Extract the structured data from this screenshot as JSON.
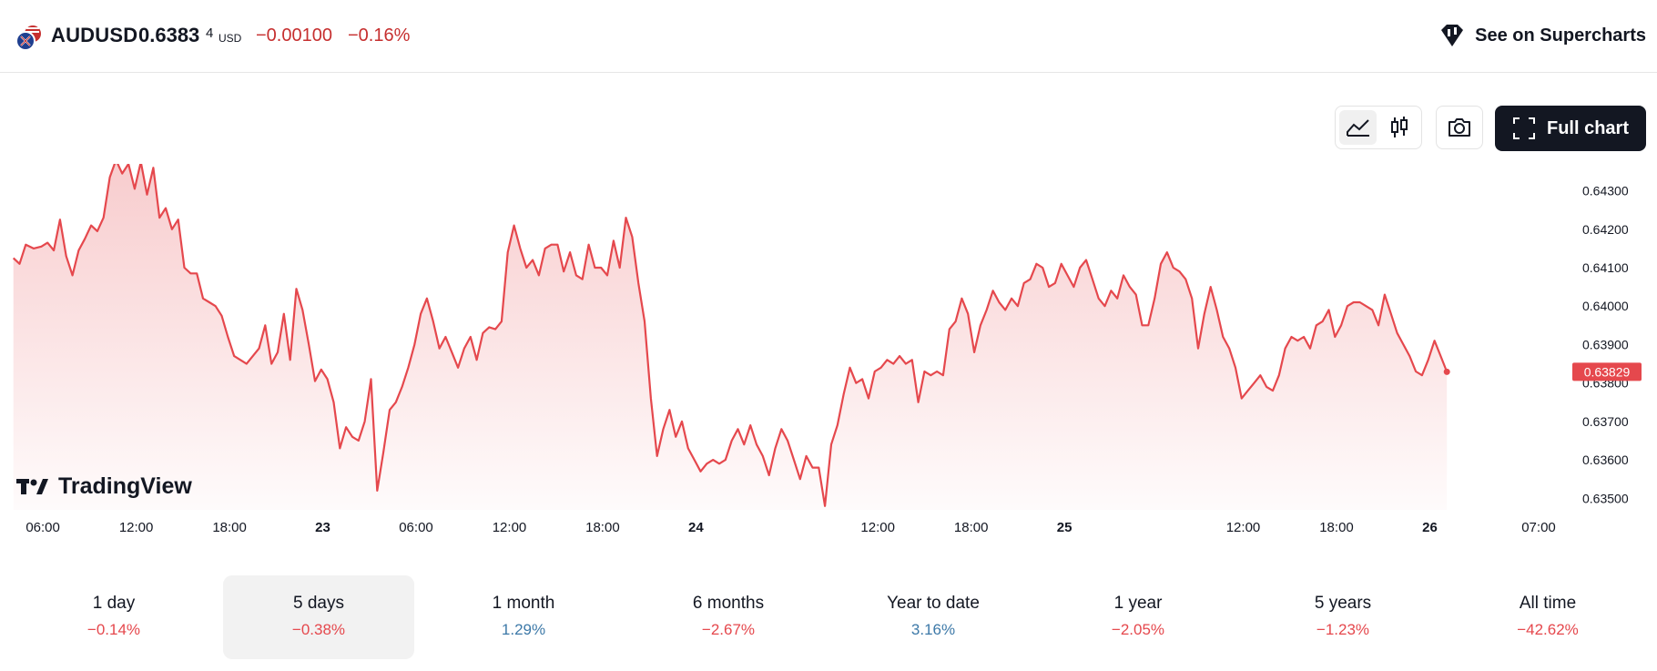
{
  "header": {
    "symbol": "AUDUSD",
    "price_main": "0.6383",
    "price_sup": "4",
    "price_unit": "USD",
    "change_abs": "−0.00100",
    "change_pct": "−0.16%",
    "supercharts_label": "See on Supercharts"
  },
  "toolbar": {
    "full_chart_label": "Full chart"
  },
  "watermark": "TradingView",
  "chart_data": {
    "type": "area",
    "y_ticks": [
      "0.64300",
      "0.64200",
      "0.64100",
      "0.64000",
      "0.63900",
      "0.63800",
      "0.63700",
      "0.63600",
      "0.63500"
    ],
    "y_tick_values": [
      0.643,
      0.642,
      0.641,
      0.64,
      0.639,
      0.638,
      0.637,
      0.636,
      0.635
    ],
    "ylim": [
      0.6347,
      0.6437
    ],
    "x_ticks": [
      {
        "label": "06:00",
        "t": 0.3,
        "bold": false
      },
      {
        "label": "12:00",
        "t": 6.3,
        "bold": false
      },
      {
        "label": "18:00",
        "t": 12.3,
        "bold": false
      },
      {
        "label": "23",
        "t": 18.3,
        "bold": true
      },
      {
        "label": "06:00",
        "t": 24.3,
        "bold": false
      },
      {
        "label": "12:00",
        "t": 30.3,
        "bold": false
      },
      {
        "label": "18:00",
        "t": 36.3,
        "bold": false
      },
      {
        "label": "24",
        "t": 42.3,
        "bold": true
      },
      {
        "label": "12:00",
        "t": 54.0,
        "bold": false
      },
      {
        "label": "18:00",
        "t": 60.0,
        "bold": false
      },
      {
        "label": "25",
        "t": 66.0,
        "bold": true
      },
      {
        "label": "12:00",
        "t": 77.5,
        "bold": false
      },
      {
        "label": "18:00",
        "t": 83.5,
        "bold": false
      },
      {
        "label": "26",
        "t": 89.5,
        "bold": true
      },
      {
        "label": "07:00",
        "t": 96.5,
        "bold": false
      }
    ],
    "last_value_label": "0.63829",
    "series": [
      {
        "color": "#e5484d",
        "points": [
          [
            -1.6,
            0.64125
          ],
          [
            -1.2,
            0.6411
          ],
          [
            -0.8,
            0.6416
          ],
          [
            -0.3,
            0.6415
          ],
          [
            0.2,
            0.64155
          ],
          [
            0.6,
            0.64165
          ],
          [
            1.0,
            0.64145
          ],
          [
            1.4,
            0.64225
          ],
          [
            1.8,
            0.6413
          ],
          [
            2.2,
            0.6408
          ],
          [
            2.6,
            0.64145
          ],
          [
            3.0,
            0.64175
          ],
          [
            3.4,
            0.6421
          ],
          [
            3.8,
            0.64195
          ],
          [
            4.2,
            0.6423
          ],
          [
            4.6,
            0.64335
          ],
          [
            5.0,
            0.6438
          ],
          [
            5.4,
            0.64345
          ],
          [
            5.8,
            0.6437
          ],
          [
            6.2,
            0.64305
          ],
          [
            6.6,
            0.64375
          ],
          [
            7.0,
            0.6429
          ],
          [
            7.4,
            0.6436
          ],
          [
            7.8,
            0.6423
          ],
          [
            8.2,
            0.64255
          ],
          [
            8.6,
            0.642
          ],
          [
            9.0,
            0.64225
          ],
          [
            9.4,
            0.641
          ],
          [
            9.8,
            0.64085
          ],
          [
            10.2,
            0.64085
          ],
          [
            10.6,
            0.6402
          ],
          [
            11.0,
            0.6401
          ],
          [
            11.4,
            0.64
          ],
          [
            11.8,
            0.63975
          ],
          [
            12.2,
            0.6392
          ],
          [
            12.6,
            0.6387
          ],
          [
            13.0,
            0.6386
          ],
          [
            13.4,
            0.6385
          ],
          [
            13.8,
            0.6387
          ],
          [
            14.2,
            0.6389
          ],
          [
            14.6,
            0.6395
          ],
          [
            15.0,
            0.6385
          ],
          [
            15.4,
            0.6388
          ],
          [
            15.8,
            0.6398
          ],
          [
            16.2,
            0.6386
          ],
          [
            16.6,
            0.64045
          ],
          [
            17.0,
            0.6399
          ],
          [
            17.4,
            0.639
          ],
          [
            17.8,
            0.63805
          ],
          [
            18.2,
            0.63835
          ],
          [
            18.6,
            0.6381
          ],
          [
            19.0,
            0.6375
          ],
          [
            19.4,
            0.6363
          ],
          [
            19.8,
            0.63685
          ],
          [
            20.2,
            0.6366
          ],
          [
            20.6,
            0.6365
          ],
          [
            21.0,
            0.637
          ],
          [
            21.4,
            0.6381
          ],
          [
            21.8,
            0.6352
          ],
          [
            22.2,
            0.6362
          ],
          [
            22.6,
            0.6373
          ],
          [
            23.0,
            0.6375
          ],
          [
            23.4,
            0.6379
          ],
          [
            23.8,
            0.6384
          ],
          [
            24.2,
            0.639
          ],
          [
            24.6,
            0.6398
          ],
          [
            25.0,
            0.6402
          ],
          [
            25.4,
            0.6396
          ],
          [
            25.8,
            0.6389
          ],
          [
            26.2,
            0.6392
          ],
          [
            26.6,
            0.6388
          ],
          [
            27.0,
            0.6384
          ],
          [
            27.4,
            0.6389
          ],
          [
            27.8,
            0.6392
          ],
          [
            28.2,
            0.6386
          ],
          [
            28.6,
            0.6393
          ],
          [
            29.0,
            0.63945
          ],
          [
            29.4,
            0.6394
          ],
          [
            29.8,
            0.6396
          ],
          [
            30.2,
            0.6414
          ],
          [
            30.6,
            0.6421
          ],
          [
            31.0,
            0.6415
          ],
          [
            31.4,
            0.641
          ],
          [
            31.8,
            0.6412
          ],
          [
            32.2,
            0.6408
          ],
          [
            32.6,
            0.6415
          ],
          [
            33.0,
            0.6416
          ],
          [
            33.4,
            0.6416
          ],
          [
            33.8,
            0.6409
          ],
          [
            34.2,
            0.6414
          ],
          [
            34.6,
            0.6408
          ],
          [
            35.0,
            0.6407
          ],
          [
            35.4,
            0.6416
          ],
          [
            35.8,
            0.641
          ],
          [
            36.2,
            0.641
          ],
          [
            36.6,
            0.6408
          ],
          [
            37.0,
            0.6417
          ],
          [
            37.4,
            0.641
          ],
          [
            37.8,
            0.6423
          ],
          [
            38.2,
            0.6418
          ],
          [
            38.6,
            0.6406
          ],
          [
            39.0,
            0.6396
          ],
          [
            39.4,
            0.6376
          ],
          [
            39.8,
            0.6361
          ],
          [
            40.2,
            0.6368
          ],
          [
            40.6,
            0.6373
          ],
          [
            41.0,
            0.6366
          ],
          [
            41.4,
            0.637
          ],
          [
            41.8,
            0.6363
          ],
          [
            42.2,
            0.636
          ],
          [
            42.6,
            0.6357
          ],
          [
            43.0,
            0.6359
          ],
          [
            43.4,
            0.636
          ],
          [
            43.8,
            0.6359
          ],
          [
            44.2,
            0.636
          ],
          [
            44.6,
            0.6365
          ],
          [
            45.0,
            0.6368
          ],
          [
            45.4,
            0.6364
          ],
          [
            45.8,
            0.6369
          ],
          [
            46.2,
            0.6364
          ],
          [
            46.6,
            0.6361
          ],
          [
            47.0,
            0.6356
          ],
          [
            47.4,
            0.6363
          ],
          [
            47.8,
            0.6368
          ],
          [
            48.2,
            0.6365
          ],
          [
            48.6,
            0.636
          ],
          [
            49.0,
            0.6355
          ],
          [
            49.4,
            0.6361
          ],
          [
            49.8,
            0.6358
          ],
          [
            50.2,
            0.6358
          ],
          [
            50.6,
            0.6348
          ],
          [
            51.0,
            0.6364
          ],
          [
            51.4,
            0.6369
          ],
          [
            51.8,
            0.6377
          ],
          [
            52.2,
            0.6384
          ],
          [
            52.6,
            0.638
          ],
          [
            53.0,
            0.6381
          ],
          [
            53.4,
            0.6376
          ],
          [
            53.8,
            0.6383
          ],
          [
            54.2,
            0.6384
          ],
          [
            54.6,
            0.6386
          ],
          [
            55.0,
            0.6385
          ],
          [
            55.4,
            0.6387
          ],
          [
            55.8,
            0.6385
          ],
          [
            56.2,
            0.6386
          ],
          [
            56.6,
            0.6375
          ],
          [
            57.0,
            0.6383
          ],
          [
            57.4,
            0.6382
          ],
          [
            57.8,
            0.6383
          ],
          [
            58.2,
            0.6382
          ],
          [
            58.6,
            0.6394
          ],
          [
            59.0,
            0.6396
          ],
          [
            59.4,
            0.6402
          ],
          [
            59.8,
            0.6398
          ],
          [
            60.2,
            0.6388
          ],
          [
            60.6,
            0.6395
          ],
          [
            61.0,
            0.6399
          ],
          [
            61.4,
            0.6404
          ],
          [
            61.8,
            0.6401
          ],
          [
            62.2,
            0.6399
          ],
          [
            62.6,
            0.6402
          ],
          [
            63.0,
            0.64
          ],
          [
            63.4,
            0.6406
          ],
          [
            63.8,
            0.6407
          ],
          [
            64.2,
            0.6411
          ],
          [
            64.6,
            0.641
          ],
          [
            65.0,
            0.6405
          ],
          [
            65.4,
            0.6406
          ],
          [
            65.8,
            0.6411
          ],
          [
            66.2,
            0.6408
          ],
          [
            66.6,
            0.6405
          ],
          [
            67.0,
            0.641
          ],
          [
            67.4,
            0.6412
          ],
          [
            67.8,
            0.6407
          ],
          [
            68.2,
            0.6402
          ],
          [
            68.6,
            0.64
          ],
          [
            69.0,
            0.6404
          ],
          [
            69.4,
            0.6402
          ],
          [
            69.8,
            0.6408
          ],
          [
            70.2,
            0.6405
          ],
          [
            70.6,
            0.6403
          ],
          [
            71.0,
            0.6395
          ],
          [
            71.4,
            0.6395
          ],
          [
            71.8,
            0.6402
          ],
          [
            72.2,
            0.6411
          ],
          [
            72.6,
            0.6414
          ],
          [
            73.0,
            0.641
          ],
          [
            73.4,
            0.6409
          ],
          [
            73.8,
            0.6407
          ],
          [
            74.2,
            0.6402
          ],
          [
            74.6,
            0.6389
          ],
          [
            75.0,
            0.6398
          ],
          [
            75.4,
            0.6405
          ],
          [
            75.8,
            0.6399
          ],
          [
            76.2,
            0.6392
          ],
          [
            76.6,
            0.6389
          ],
          [
            77.0,
            0.6384
          ],
          [
            77.4,
            0.6376
          ],
          [
            77.8,
            0.6378
          ],
          [
            78.2,
            0.638
          ],
          [
            78.6,
            0.6382
          ],
          [
            79.0,
            0.6379
          ],
          [
            79.4,
            0.6378
          ],
          [
            79.8,
            0.6382
          ],
          [
            80.2,
            0.6389
          ],
          [
            80.6,
            0.6392
          ],
          [
            81.0,
            0.6391
          ],
          [
            81.4,
            0.6392
          ],
          [
            81.8,
            0.6389
          ],
          [
            82.2,
            0.6395
          ],
          [
            82.6,
            0.6396
          ],
          [
            83.0,
            0.6399
          ],
          [
            83.4,
            0.6392
          ],
          [
            83.8,
            0.6395
          ],
          [
            84.2,
            0.64
          ],
          [
            84.6,
            0.6401
          ],
          [
            85.0,
            0.6401
          ],
          [
            85.4,
            0.64
          ],
          [
            85.8,
            0.6399
          ],
          [
            86.2,
            0.6395
          ],
          [
            86.6,
            0.6403
          ],
          [
            87.0,
            0.6398
          ],
          [
            87.4,
            0.6393
          ],
          [
            87.8,
            0.639
          ],
          [
            88.2,
            0.6387
          ],
          [
            88.6,
            0.6383
          ],
          [
            89.0,
            0.6382
          ],
          [
            89.4,
            0.6386
          ],
          [
            89.8,
            0.6391
          ],
          [
            90.2,
            0.6387
          ],
          [
            90.6,
            0.63829
          ]
        ]
      }
    ]
  },
  "periods": [
    {
      "label": "1 day",
      "value": "−0.14%",
      "dir": "neg",
      "active": false
    },
    {
      "label": "5 days",
      "value": "−0.38%",
      "dir": "neg",
      "active": true
    },
    {
      "label": "1 month",
      "value": "1.29%",
      "dir": "pos",
      "active": false
    },
    {
      "label": "6 months",
      "value": "−2.67%",
      "dir": "neg",
      "active": false
    },
    {
      "label": "Year to date",
      "value": "3.16%",
      "dir": "pos",
      "active": false
    },
    {
      "label": "1 year",
      "value": "−2.05%",
      "dir": "neg",
      "active": false
    },
    {
      "label": "5 years",
      "value": "−1.23%",
      "dir": "neg",
      "active": false
    },
    {
      "label": "All time",
      "value": "−42.62%",
      "dir": "neg",
      "active": false
    }
  ]
}
